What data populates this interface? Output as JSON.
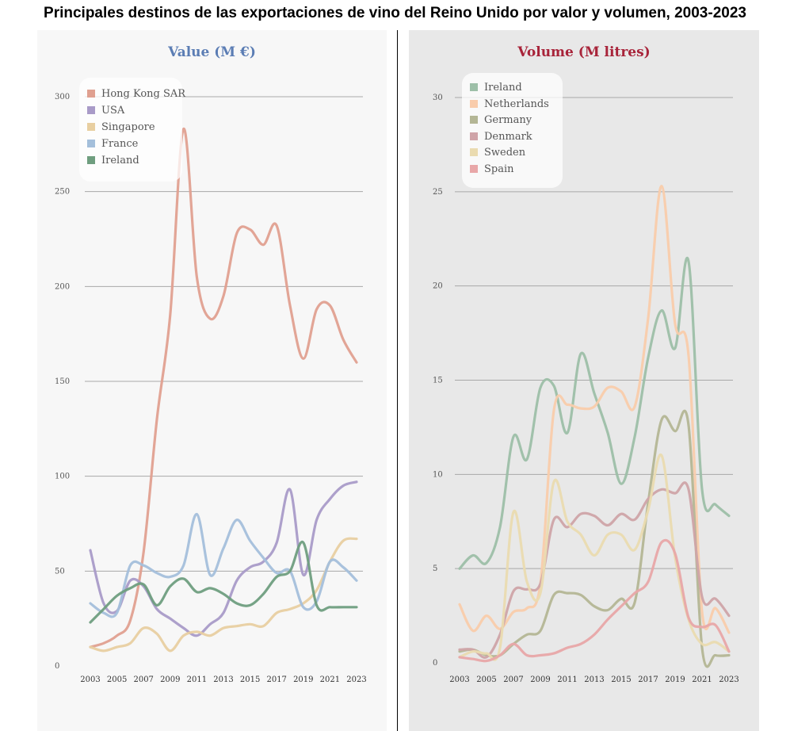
{
  "title": "Principales destinos de las exportaciones de vino del Reino Unido por valor y volumen, 2003-2023",
  "chart_data": [
    {
      "type": "line",
      "title": "Value (M €)",
      "title_color": "#5b7db4",
      "x": [
        2003,
        2004,
        2005,
        2006,
        2007,
        2008,
        2009,
        2010,
        2011,
        2012,
        2013,
        2014,
        2015,
        2016,
        2017,
        2018,
        2019,
        2020,
        2021,
        2022,
        2023
      ],
      "x_tick_labels": [
        "2003",
        "2005",
        "2007",
        "2009",
        "2011",
        "2013",
        "2015",
        "2017",
        "2019",
        "2021",
        "2023"
      ],
      "ylim": [
        0,
        300
      ],
      "y_ticks": [
        0,
        50,
        100,
        150,
        200,
        250,
        300
      ],
      "grid": true,
      "legend_position": "top-left",
      "series": [
        {
          "name": "Hong Kong SAR",
          "color": "#e0a090",
          "values": [
            10,
            12,
            16,
            24,
            60,
            130,
            185,
            283,
            205,
            183,
            195,
            228,
            230,
            222,
            232,
            190,
            162,
            188,
            190,
            172,
            160
          ]
        },
        {
          "name": "USA",
          "color": "#a99bc8",
          "values": [
            61,
            33,
            29,
            45,
            42,
            30,
            25,
            20,
            16,
            22,
            28,
            45,
            52,
            55,
            65,
            93,
            48,
            77,
            88,
            95,
            97
          ]
        },
        {
          "name": "Singapore",
          "color": "#e8cfa1",
          "values": [
            10,
            8,
            10,
            12,
            20,
            17,
            8,
            16,
            18,
            16,
            20,
            21,
            22,
            21,
            28,
            30,
            33,
            40,
            55,
            66,
            67
          ]
        },
        {
          "name": "France",
          "color": "#a4bfdb",
          "values": [
            33,
            28,
            28,
            53,
            53,
            49,
            47,
            53,
            80,
            48,
            62,
            77,
            66,
            57,
            49,
            50,
            31,
            34,
            55,
            52,
            45
          ]
        },
        {
          "name": "Ireland",
          "color": "#6f9e7f",
          "values": [
            23,
            30,
            37,
            41,
            43,
            32,
            42,
            46,
            39,
            41,
            38,
            33,
            32,
            38,
            47,
            50,
            65,
            32,
            31,
            31,
            31
          ]
        }
      ]
    },
    {
      "type": "line",
      "title": "Volume (M litres)",
      "title_color": "#a8243a",
      "x": [
        2003,
        2004,
        2005,
        2006,
        2007,
        2008,
        2009,
        2010,
        2011,
        2012,
        2013,
        2014,
        2015,
        2016,
        2017,
        2018,
        2019,
        2020,
        2021,
        2022,
        2023
      ],
      "x_tick_labels": [
        "2003",
        "2005",
        "2007",
        "2009",
        "2011",
        "2013",
        "2015",
        "2017",
        "2019",
        "2021",
        "2023"
      ],
      "ylim": [
        0,
        30
      ],
      "y_ticks": [
        0,
        5,
        10,
        15,
        20,
        25,
        30
      ],
      "grid": true,
      "legend_position": "top-left",
      "series": [
        {
          "name": "Ireland",
          "color": "#9dbfa8",
          "values": [
            5.0,
            5.7,
            5.3,
            7.2,
            12.0,
            10.8,
            14.6,
            14.7,
            12.2,
            16.4,
            14.3,
            12.2,
            9.5,
            12.0,
            16.2,
            18.7,
            16.7,
            21.3,
            9.2,
            8.4,
            7.8
          ]
        },
        {
          "name": "Netherlands",
          "color": "#f9ccab",
          "values": [
            3.1,
            1.7,
            2.5,
            1.8,
            2.7,
            2.9,
            4.2,
            13.4,
            13.7,
            13.5,
            13.6,
            14.6,
            14.4,
            13.6,
            18.3,
            25.3,
            18.0,
            16.3,
            2.7,
            2.9,
            1.6
          ]
        },
        {
          "name": "Germany",
          "color": "#b4b695",
          "values": [
            0.6,
            0.7,
            0.4,
            0.4,
            1.0,
            1.5,
            1.7,
            3.6,
            3.7,
            3.6,
            3.0,
            2.8,
            3.4,
            3.2,
            8.5,
            12.9,
            12.3,
            12.6,
            0.8,
            0.4,
            0.4
          ]
        },
        {
          "name": "Denmark",
          "color": "#cfa4a8",
          "values": [
            0.7,
            0.7,
            0.3,
            1.5,
            3.8,
            3.9,
            4.2,
            7.6,
            7.2,
            7.9,
            7.8,
            7.3,
            7.9,
            7.6,
            8.7,
            9.2,
            9.0,
            9.2,
            3.5,
            3.4,
            2.5
          ]
        },
        {
          "name": "Sweden",
          "color": "#eadbb0",
          "values": [
            0.3,
            0.6,
            0.5,
            0.8,
            8.0,
            4.3,
            3.7,
            9.6,
            7.5,
            6.8,
            5.7,
            6.8,
            6.8,
            6.0,
            8.1,
            11.0,
            5.6,
            2.3,
            1.0,
            1.1,
            0.6
          ]
        },
        {
          "name": "Spain",
          "color": "#e8a7a8",
          "values": [
            0.3,
            0.2,
            0.1,
            0.4,
            1.0,
            0.4,
            0.4,
            0.5,
            0.8,
            1.0,
            1.5,
            2.3,
            3.0,
            3.7,
            4.3,
            6.4,
            5.8,
            2.4,
            1.9,
            2.0,
            0.6
          ]
        }
      ]
    }
  ]
}
